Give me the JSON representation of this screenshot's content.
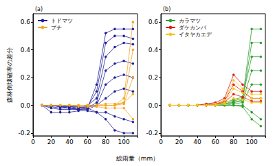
{
  "x_label": "総雨量（mm）",
  "chart_data": [
    {
      "type": "line",
      "title": "(a)",
      "ylabel": "森林倒壊確率の差分",
      "marker": "circle",
      "legend": "upper left",
      "grid": false,
      "x": [
        10,
        20,
        30,
        40,
        50,
        60,
        70,
        80,
        90,
        100,
        110
      ],
      "xlim": [
        0,
        115
      ],
      "xticks": [
        0,
        20,
        40,
        60,
        80,
        100
      ],
      "ylim": [
        -0.22,
        0.66
      ],
      "yticks": [
        -0.2,
        {
          "value": 0,
          "label": "0.0"
        },
        0.2,
        0.4,
        0.6
      ],
      "series": [
        {
          "name": "トドマツ",
          "color": "#1f1f99",
          "values": [
            0,
            0,
            -0.01,
            -0.02,
            -0.02,
            -0.01,
            0.1,
            0.45,
            0.5,
            0.5,
            0.48
          ]
        },
        {
          "name": "トドマツ",
          "color": "#1f1f99",
          "values": [
            0,
            0,
            -0.01,
            -0.01,
            -0.02,
            0,
            0.05,
            0.35,
            0.42,
            0.45,
            0.44
          ]
        },
        {
          "name": "トドマツ",
          "color": "#1f1f99",
          "values": [
            0,
            -0.02,
            -0.03,
            -0.03,
            -0.03,
            -0.02,
            0.02,
            0.25,
            0.3,
            0.32,
            0.3
          ]
        },
        {
          "name": "トドマツ",
          "color": "#1f1f99",
          "values": [
            0,
            -0.01,
            -0.02,
            -0.02,
            -0.03,
            -0.03,
            0,
            0.15,
            0.2,
            0.22,
            0.2
          ]
        },
        {
          "name": "トドマツ",
          "color": "#1f1f99",
          "values": [
            0,
            0,
            0,
            -0.01,
            -0.01,
            -0.01,
            0,
            0.05,
            0.1,
            0.12,
            0.1
          ]
        },
        {
          "name": "トドマツ",
          "color": "#1f1f99",
          "values": [
            0,
            -0.05,
            -0.05,
            -0.05,
            -0.04,
            -0.04,
            -0.05,
            -0.05,
            -0.08,
            -0.1,
            -0.12
          ]
        },
        {
          "name": "トドマツ",
          "color": "#1f1f99",
          "values": [
            0,
            0,
            -0.01,
            -0.02,
            -0.03,
            -0.02,
            0.15,
            0.52,
            0.55,
            0.55,
            0.55
          ]
        },
        {
          "name": "トドマツ",
          "color": "#1f1f99",
          "values": [
            0,
            0,
            0,
            0,
            -0.01,
            -0.02,
            -0.05,
            -0.1,
            -0.18,
            -0.2,
            -0.2
          ]
        },
        {
          "name": "ブナ",
          "color": "#f5a623",
          "values": [
            0,
            0,
            0,
            0,
            0,
            0,
            0,
            0,
            0,
            0.05,
            0.6
          ]
        },
        {
          "name": "ブナ",
          "color": "#f5a623",
          "values": [
            0,
            0,
            0,
            0,
            0,
            0,
            0,
            0.01,
            0.01,
            0.02,
            0.4
          ]
        },
        {
          "name": "ブナ",
          "color": "#f5a623",
          "values": [
            0,
            0,
            0,
            0,
            0,
            0,
            0,
            0,
            0,
            0.01,
            0.2
          ]
        },
        {
          "name": "ブナ",
          "color": "#f5a623",
          "values": [
            0,
            0,
            0,
            0,
            -0.01,
            -0.01,
            -0.01,
            -0.02,
            -0.02,
            -0.02,
            -0.1
          ]
        },
        {
          "name": "ブナ",
          "color": "#f5a623",
          "values": [
            0,
            0,
            0,
            0,
            0,
            0,
            0,
            0,
            0,
            0.02,
            0.08
          ]
        }
      ]
    },
    {
      "type": "line",
      "title": "(b)",
      "marker": "circle",
      "legend": "upper left",
      "grid": false,
      "x": [
        10,
        20,
        30,
        40,
        50,
        60,
        70,
        80,
        90,
        100,
        110
      ],
      "xlim": [
        0,
        115
      ],
      "xticks": [
        0,
        20,
        40,
        60,
        80,
        100
      ],
      "ylim": [
        -0.22,
        0.66
      ],
      "yticks": [
        -0.2,
        {
          "value": 0,
          "label": "0.0"
        },
        0.2,
        0.4,
        0.6
      ],
      "series": [
        {
          "name": "カラマツ",
          "color": "#2ca02c",
          "values": [
            0,
            0,
            0,
            0,
            0,
            0,
            0.01,
            0.03,
            0.05,
            0.55,
            0.55
          ]
        },
        {
          "name": "カラマツ",
          "color": "#2ca02c",
          "values": [
            0,
            0,
            0,
            0,
            0,
            0,
            0.01,
            0.02,
            0.04,
            0.45,
            0.45
          ]
        },
        {
          "name": "カラマツ",
          "color": "#2ca02c",
          "values": [
            0,
            0,
            0,
            0,
            0.01,
            0.01,
            0.02,
            0.04,
            0.06,
            0.35,
            0.35
          ]
        },
        {
          "name": "カラマツ",
          "color": "#2ca02c",
          "values": [
            0,
            0,
            0,
            0,
            0,
            0,
            0.01,
            0.02,
            0.03,
            0.25,
            0.25
          ]
        },
        {
          "name": "カラマツ",
          "color": "#2ca02c",
          "values": [
            0,
            0,
            0,
            0,
            0,
            0,
            0,
            0.01,
            0.02,
            0.15,
            0.15
          ]
        },
        {
          "name": "カラマツ",
          "color": "#2ca02c",
          "values": [
            0,
            0,
            0,
            0,
            0,
            0,
            0,
            0,
            0,
            -0.05,
            -0.1
          ]
        },
        {
          "name": "カラマツ",
          "color": "#2ca02c",
          "values": [
            0,
            0,
            0,
            0,
            0,
            0,
            0,
            0,
            -0.01,
            -0.1,
            -0.15
          ]
        },
        {
          "name": "ダケカンバ",
          "color": "#e41a1c",
          "values": [
            0,
            0,
            0,
            0,
            0.01,
            0.02,
            0.05,
            0.22,
            0.15,
            0.1,
            0.1
          ]
        },
        {
          "name": "ダケカンバ",
          "color": "#e41a1c",
          "values": [
            0,
            0,
            0,
            0,
            0,
            0.01,
            0.03,
            0.15,
            0.1,
            0.05,
            0.05
          ]
        },
        {
          "name": "ダケカンバ",
          "color": "#e41a1c",
          "values": [
            0,
            0,
            0,
            0,
            0,
            0.01,
            0.02,
            0.08,
            0.06,
            0.03,
            0.03
          ]
        },
        {
          "name": "イタヤカエデ",
          "color": "#f5c518",
          "values": [
            0,
            0,
            0,
            0,
            0,
            0.01,
            0.04,
            0.18,
            0.12,
            0.08,
            0.08
          ]
        },
        {
          "name": "イタヤカエデ",
          "color": "#f5c518",
          "values": [
            0,
            0,
            0,
            0,
            0,
            0,
            0.02,
            0.12,
            0.09,
            0.05,
            0.05
          ]
        },
        {
          "name": "イタヤカエデ",
          "color": "#f5c518",
          "values": [
            0,
            0,
            0,
            0,
            0,
            0,
            0.01,
            0.05,
            0.04,
            0.02,
            0.02
          ]
        }
      ]
    }
  ]
}
